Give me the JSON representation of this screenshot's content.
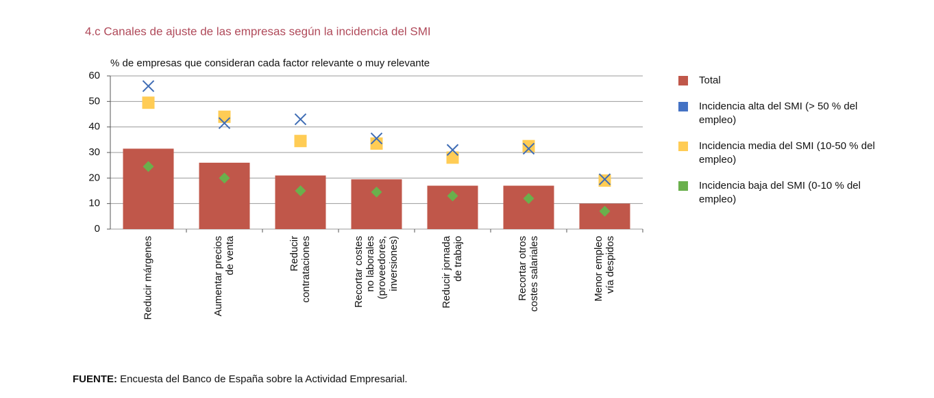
{
  "chart_data": {
    "type": "bar",
    "title": "4.c  Canales de ajuste de las empresas según la incidencia del SMI",
    "y_label": "% de empresas que consideran cada factor relevante o muy relevante",
    "categories": [
      [
        "Reducir márgenes"
      ],
      [
        "Aumentar precios",
        "de venta"
      ],
      [
        "Reducir",
        "contrataciones"
      ],
      [
        "Recortar costes",
        "no laborales",
        "(proveedores,",
        "inversiones)"
      ],
      [
        "Reducir jornada",
        "de trabajo"
      ],
      [
        "Recortar otros",
        "costes salariales"
      ],
      [
        "Menor empleo",
        "vía despidos"
      ]
    ],
    "series": [
      {
        "name": "Total",
        "color": "#c0574a",
        "marker": "bar",
        "values": [
          31.5,
          26,
          21,
          19.5,
          17,
          17,
          10
        ]
      },
      {
        "name": "Incidencia alta del SMI (> 50 % del empleo)",
        "color": "#3f6db5",
        "marker": "x",
        "values": [
          56,
          41.5,
          43,
          35.5,
          31,
          31.5,
          19.5
        ]
      },
      {
        "name": "Incidencia media del SMI (10-50 % del empleo)",
        "color": "#ffcc55",
        "marker": "square",
        "values": [
          49.5,
          44,
          34.5,
          33.5,
          28,
          32.5,
          19
        ]
      },
      {
        "name": "Incidencia baja del SMI (0-10 % del empleo)",
        "color": "#6ab04c",
        "marker": "diamond",
        "values": [
          24.5,
          20,
          15,
          14.5,
          13,
          12,
          7
        ]
      }
    ],
    "ylim": [
      0,
      60
    ],
    "yticks": [
      0,
      10,
      20,
      30,
      40,
      50,
      60
    ],
    "grid": true,
    "source": {
      "label": "FUENTE:",
      "text": "Encuesta del Banco de España sobre la Actividad Empresarial."
    }
  }
}
